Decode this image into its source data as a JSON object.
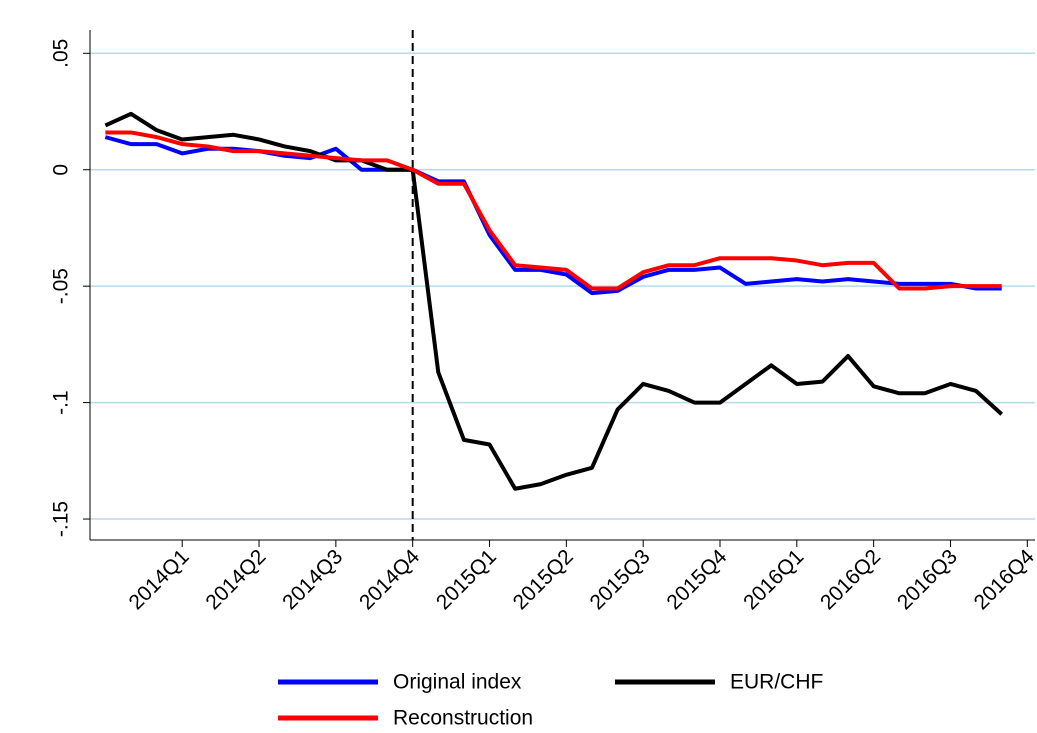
{
  "chart_data": {
    "type": "line",
    "x": [
      0,
      1,
      2,
      3,
      4,
      5,
      6,
      7,
      8,
      9,
      10,
      11,
      12,
      13,
      14,
      15,
      16,
      17,
      18,
      19,
      20,
      21,
      22,
      23,
      24,
      25,
      26,
      27,
      28,
      29,
      30,
      31,
      32,
      33,
      34,
      35
    ],
    "series": [
      {
        "name": "Original index",
        "color": "#0000ff",
        "values": [
          0.014,
          0.011,
          0.011,
          0.007,
          0.009,
          0.009,
          0.008,
          0.006,
          0.005,
          0.009,
          0,
          0,
          0,
          -0.005,
          -0.005,
          -0.028,
          -0.043,
          -0.043,
          -0.045,
          -0.053,
          -0.052,
          -0.046,
          -0.043,
          -0.043,
          -0.042,
          -0.049,
          -0.048,
          -0.047,
          -0.048,
          -0.047,
          -0.048,
          -0.049,
          -0.049,
          -0.049,
          -0.051,
          -0.051
        ]
      },
      {
        "name": "EUR/CHF",
        "color": "#000000",
        "values": [
          0.019,
          0.024,
          0.017,
          0.013,
          0.014,
          0.015,
          0.013,
          0.01,
          0.008,
          0.004,
          0.004,
          0,
          0,
          -0.087,
          -0.116,
          -0.118,
          -0.137,
          -0.135,
          -0.131,
          -0.128,
          -0.103,
          -0.092,
          -0.095,
          -0.1,
          -0.1,
          -0.092,
          -0.084,
          -0.092,
          -0.091,
          -0.08,
          -0.093,
          -0.096,
          -0.096,
          -0.092,
          -0.095,
          -0.105
        ]
      },
      {
        "name": "Reconstruction",
        "color": "#ff0000",
        "values": [
          0.016,
          0.016,
          0.014,
          0.011,
          0.01,
          0.008,
          0.008,
          0.007,
          0.006,
          0.005,
          0.004,
          0.004,
          0,
          -0.006,
          -0.006,
          -0.026,
          -0.041,
          -0.042,
          -0.043,
          -0.051,
          -0.051,
          -0.044,
          -0.041,
          -0.041,
          -0.038,
          -0.038,
          -0.038,
          -0.039,
          -0.041,
          -0.04,
          -0.04,
          -0.051,
          -0.051,
          -0.05,
          -0.05,
          -0.05
        ]
      }
    ],
    "xlim": [
      -0.6,
      36.3
    ],
    "xticks": [
      {
        "value": 3,
        "label": "2014Q1"
      },
      {
        "value": 6,
        "label": "2014Q2"
      },
      {
        "value": 9,
        "label": "2014Q3"
      },
      {
        "value": 12,
        "label": "2014Q4"
      },
      {
        "value": 15,
        "label": "2015Q1"
      },
      {
        "value": 18,
        "label": "2015Q2"
      },
      {
        "value": 21,
        "label": "2015Q3"
      },
      {
        "value": 24,
        "label": "2015Q4"
      },
      {
        "value": 27,
        "label": "2016Q1"
      },
      {
        "value": 30,
        "label": "2016Q2"
      },
      {
        "value": 33,
        "label": "2016Q3"
      },
      {
        "value": 36,
        "label": "2016Q4"
      }
    ],
    "ylim": [
      -0.159,
      0.06
    ],
    "yticks": [
      {
        "value": -0.15,
        "label": "-.15"
      },
      {
        "value": -0.1,
        "label": "-.1"
      },
      {
        "value": -0.05,
        "label": "-.05"
      },
      0,
      {
        "value": 0.05,
        "label": ".05"
      }
    ],
    "vline": 12,
    "grid": true,
    "legend": "bottom"
  }
}
